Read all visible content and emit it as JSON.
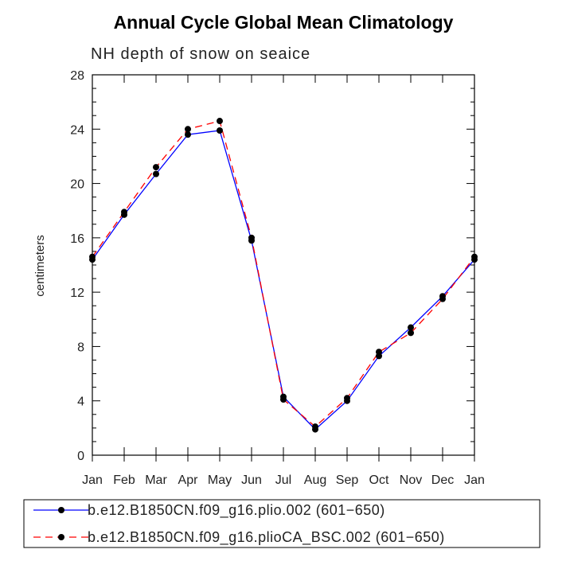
{
  "chart_data": {
    "type": "line",
    "title": "Annual Cycle Global Mean Climatology",
    "subtitle": "NH depth of snow on seaice",
    "xlabel": "",
    "ylabel": "centimeters",
    "categories": [
      "Jan",
      "Feb",
      "Mar",
      "Apr",
      "May",
      "Jun",
      "Jul",
      "Aug",
      "Sep",
      "Oct",
      "Nov",
      "Dec",
      "Jan"
    ],
    "ylim": [
      0,
      28
    ],
    "yticks": [
      0,
      4,
      8,
      12,
      16,
      20,
      24,
      28
    ],
    "ytick_labels": [
      "0",
      "4",
      "8",
      "12",
      "16",
      "20",
      "24",
      "28"
    ],
    "grid": false,
    "legend_position": "bottom",
    "series": [
      {
        "name": "b.e12.B1850CN.f09_g16.plio.002 (601−650)",
        "color": "#0000ff",
        "dash": "solid",
        "values": [
          14.4,
          17.7,
          20.7,
          23.6,
          23.9,
          15.8,
          4.3,
          1.9,
          4.0,
          7.3,
          9.4,
          11.7,
          14.4
        ]
      },
      {
        "name": "b.e12.B1850CN.f09_g16.plioCA_BSC.002 (601−650)",
        "color": "#ff0000",
        "dash": "dashed",
        "values": [
          14.6,
          17.9,
          21.2,
          24.0,
          24.6,
          16.0,
          4.1,
          2.1,
          4.2,
          7.6,
          9.0,
          11.5,
          14.6
        ]
      }
    ]
  }
}
